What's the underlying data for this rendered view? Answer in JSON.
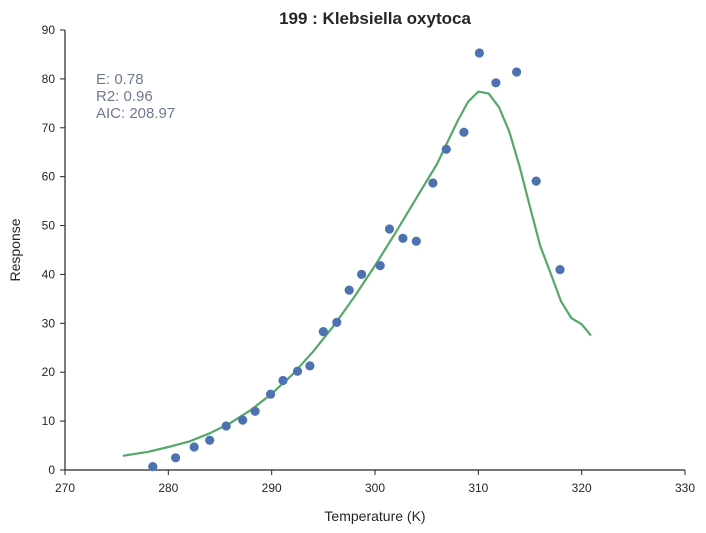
{
  "chart_data": {
    "type": "scatter",
    "title": "199 : Klebsiella oxytoca",
    "xlabel": "Temperature (K)",
    "ylabel": "Response",
    "xlim": [
      270,
      330
    ],
    "ylim": [
      0,
      90
    ],
    "xticks": [
      270,
      280,
      290,
      300,
      310,
      320,
      330
    ],
    "yticks": [
      0,
      10,
      20,
      30,
      40,
      50,
      60,
      70,
      80,
      90
    ],
    "grid": false,
    "annotations": [
      "E:  0.78",
      "R2:  0.96",
      "AIC: 208.97"
    ],
    "series": [
      {
        "kind": "scatter",
        "color": "#4c72b0",
        "x": [
          278.5,
          280.7,
          282.5,
          284,
          285.6,
          287.2,
          288.4,
          289.9,
          291.1,
          292.5,
          293.7,
          295,
          296.3,
          297.5,
          298.7,
          300.5,
          301.4,
          302.7,
          304,
          305.6,
          306.9,
          308.6,
          310.1,
          311.7,
          313.7,
          315.6,
          317.9
        ],
        "y": [
          0.7,
          2.5,
          4.7,
          6.1,
          9.0,
          10.2,
          12.0,
          15.5,
          18.3,
          20.2,
          21.3,
          28.3,
          30.2,
          36.8,
          40.0,
          41.8,
          49.3,
          47.4,
          46.8,
          58.7,
          65.6,
          69.1,
          85.3,
          79.2,
          81.4,
          59.1,
          41.0
        ]
      },
      {
        "kind": "line",
        "color": "#55a868",
        "x": [
          275.6,
          278,
          280,
          282,
          284,
          286,
          288,
          290,
          292,
          294,
          296,
          298,
          300,
          302,
          304,
          306,
          307,
          308,
          309,
          310,
          311,
          312,
          313,
          314,
          315,
          316,
          317,
          318,
          319,
          320,
          320.9
        ],
        "y": [
          2.9,
          3.7,
          4.7,
          5.8,
          7.5,
          9.6,
          12.3,
          15.6,
          19.5,
          24.2,
          29.5,
          35.4,
          41.8,
          48.6,
          55.6,
          62.6,
          67.0,
          71.4,
          75.3,
          77.4,
          77.0,
          74.2,
          69.2,
          62.0,
          53.8,
          45.8,
          40.2,
          34.5,
          31.1,
          29.8,
          27.5
        ]
      }
    ]
  }
}
